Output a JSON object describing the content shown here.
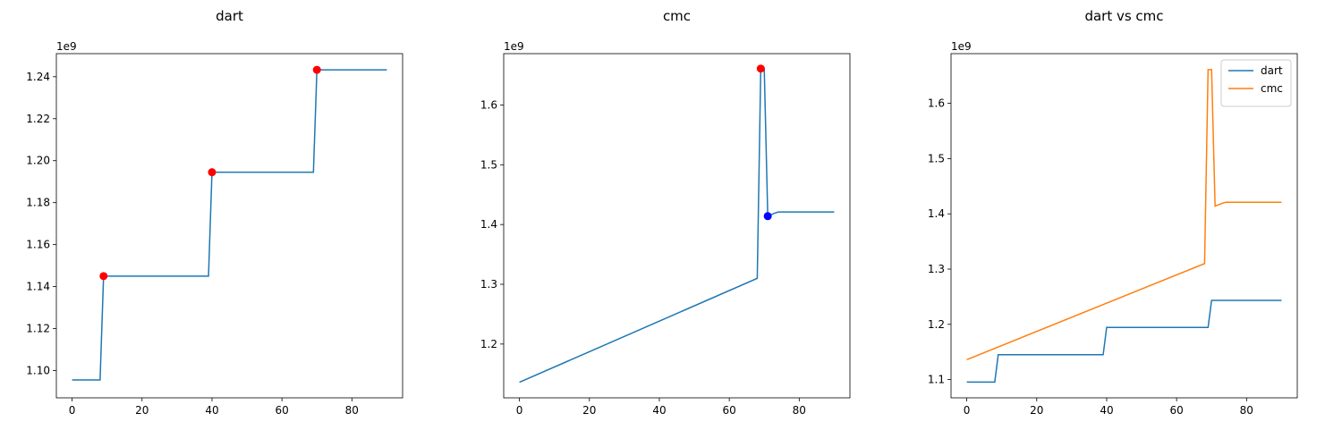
{
  "chart_data": [
    {
      "type": "line",
      "title": "dart",
      "xlabel": "",
      "ylabel": "",
      "offset_label": "1e9",
      "xlim": [
        -4.5,
        94.5
      ],
      "ylim": [
        1087000000.0,
        1251000000.0
      ],
      "xticks": [
        0,
        20,
        40,
        60,
        80
      ],
      "yticks": [
        1100000000.0,
        1120000000.0,
        1140000000.0,
        1160000000.0,
        1180000000.0,
        1200000000.0,
        1220000000.0,
        1240000000.0
      ],
      "ytick_labels": [
        "1.10",
        "1.12",
        "1.14",
        "1.16",
        "1.18",
        "1.20",
        "1.22",
        "1.24"
      ],
      "grid": false,
      "series": [
        {
          "color": "#1f77b4",
          "points": [
            [
              0,
              1095500000.0
            ],
            [
              8,
              1095500000.0
            ],
            [
              9,
              1145000000.0
            ],
            [
              39,
              1145000000.0
            ],
            [
              40,
              1194500000.0
            ],
            [
              69,
              1194500000.0
            ],
            [
              70,
              1243300000.0
            ],
            [
              90,
              1243300000.0
            ]
          ]
        }
      ],
      "markers": [
        {
          "x": 9,
          "y": 1145000000.0,
          "color": "#ff0000"
        },
        {
          "x": 40,
          "y": 1194500000.0,
          "color": "#ff0000"
        },
        {
          "x": 70,
          "y": 1243300000.0,
          "color": "#ff0000"
        }
      ]
    },
    {
      "type": "line",
      "title": "cmc",
      "xlabel": "",
      "ylabel": "",
      "offset_label": "1e9",
      "xlim": [
        -4.5,
        94.5
      ],
      "ylim": [
        1110000000.0,
        1686000000.0
      ],
      "xticks": [
        0,
        20,
        40,
        60,
        80
      ],
      "yticks": [
        1200000000.0,
        1300000000.0,
        1400000000.0,
        1500000000.0,
        1600000000.0
      ],
      "ytick_labels": [
        "1.2",
        "1.3",
        "1.4",
        "1.5",
        "1.6"
      ],
      "grid": false,
      "series": [
        {
          "color": "#1f77b4",
          "points": [
            [
              0,
              1136000000.0
            ],
            [
              68,
              1310000000.0
            ],
            [
              69,
              1661000000.0
            ],
            [
              70,
              1661000000.0
            ],
            [
              71,
              1414000000.0
            ],
            [
              73,
              1419000000.0
            ],
            [
              74,
              1421000000.0
            ],
            [
              90,
              1421000000.0
            ]
          ]
        }
      ],
      "markers": [
        {
          "x": 69,
          "y": 1661000000.0,
          "color": "#ff0000"
        },
        {
          "x": 71,
          "y": 1414000000.0,
          "color": "#0000ff"
        }
      ]
    },
    {
      "type": "line",
      "title": "dart vs cmc",
      "xlabel": "",
      "ylabel": "",
      "offset_label": "1e9",
      "xlim": [
        -4.5,
        94.5
      ],
      "ylim": [
        1067000000.0,
        1690000000.0
      ],
      "xticks": [
        0,
        20,
        40,
        60,
        80
      ],
      "yticks": [
        1100000000.0,
        1200000000.0,
        1300000000.0,
        1400000000.0,
        1500000000.0,
        1600000000.0
      ],
      "ytick_labels": [
        "1.1",
        "1.2",
        "1.3",
        "1.4",
        "1.5",
        "1.6"
      ],
      "grid": false,
      "legend": "top-right",
      "series": [
        {
          "name": "dart",
          "color": "#1f77b4",
          "points": [
            [
              0,
              1095500000.0
            ],
            [
              8,
              1095500000.0
            ],
            [
              9,
              1145000000.0
            ],
            [
              39,
              1145000000.0
            ],
            [
              40,
              1194500000.0
            ],
            [
              69,
              1194500000.0
            ],
            [
              70,
              1243300000.0
            ],
            [
              90,
              1243300000.0
            ]
          ]
        },
        {
          "name": "cmc",
          "color": "#ff7f0e",
          "points": [
            [
              0,
              1136000000.0
            ],
            [
              68,
              1310000000.0
            ],
            [
              69,
              1661000000.0
            ],
            [
              70,
              1661000000.0
            ],
            [
              71,
              1414000000.0
            ],
            [
              73,
              1419000000.0
            ],
            [
              74,
              1421000000.0
            ],
            [
              90,
              1421000000.0
            ]
          ]
        }
      ],
      "markers": []
    }
  ]
}
